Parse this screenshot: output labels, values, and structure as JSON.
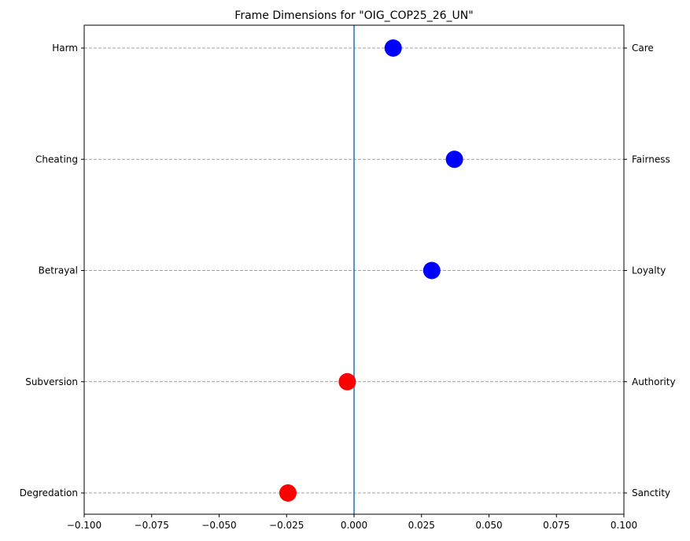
{
  "chart_data": {
    "type": "scatter",
    "title": "Frame Dimensions for \"OIG_COP25_26_UN\"",
    "xlim": [
      -0.1,
      0.1
    ],
    "x_ticks": [
      -0.1,
      -0.075,
      -0.05,
      -0.025,
      0.0,
      0.025,
      0.05,
      0.075,
      0.1
    ],
    "x_tick_labels": [
      "−0.100",
      "−0.075",
      "−0.050",
      "−0.025",
      "0.000",
      "0.025",
      "0.050",
      "0.075",
      "0.100"
    ],
    "grid": "horizontal dashed at each category",
    "reference_line_x": 0.0,
    "colors": {
      "positive": "#0000ff",
      "negative": "#ff0000",
      "zero_line": "#1f77b4",
      "grid": "#808080"
    },
    "points": [
      {
        "left_label": "Harm",
        "right_label": "Care",
        "value": 0.0145
      },
      {
        "left_label": "Cheating",
        "right_label": "Fairness",
        "value": 0.0372
      },
      {
        "left_label": "Betrayal",
        "right_label": "Loyalty",
        "value": 0.0288
      },
      {
        "left_label": "Subversion",
        "right_label": "Authority",
        "value": -0.0025
      },
      {
        "left_label": "Degredation",
        "right_label": "Sanctity",
        "value": -0.0245
      }
    ]
  }
}
